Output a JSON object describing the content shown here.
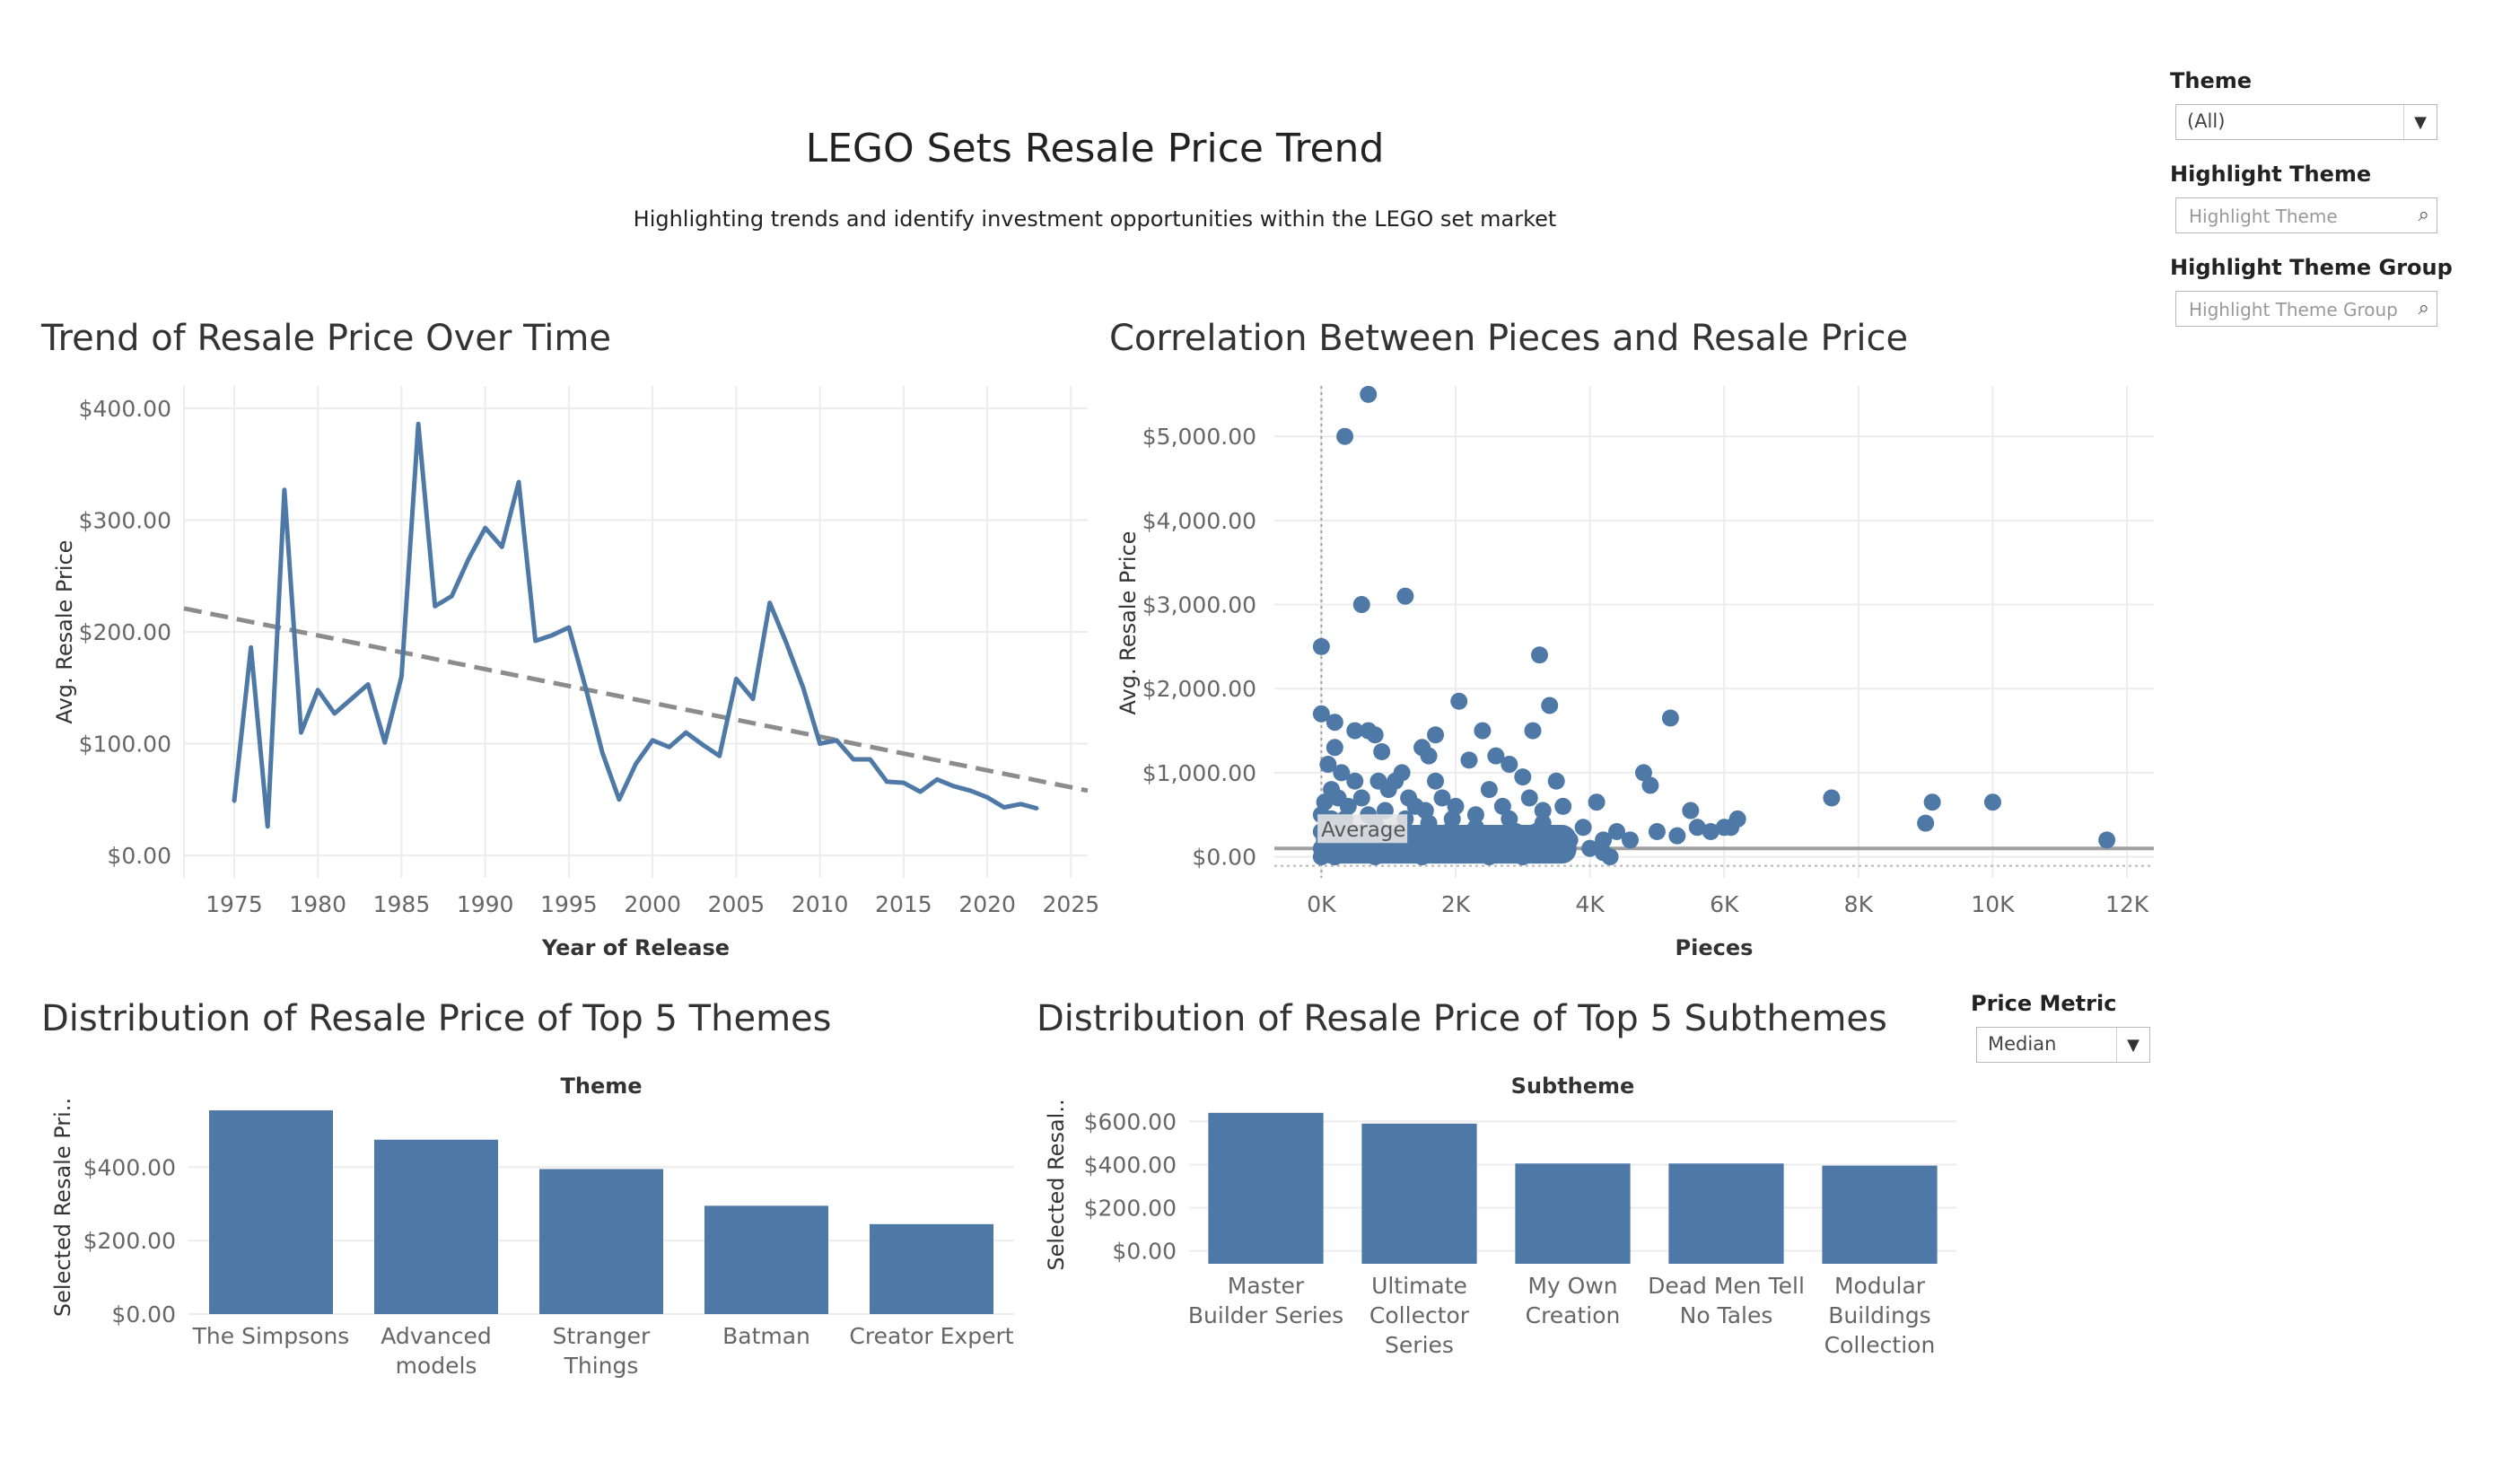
{
  "header": {
    "title": "LEGO Sets Resale Price Trend",
    "subtitle": "Highlighting trends and identify investment opportunities within the LEGO set market"
  },
  "controls": {
    "theme": {
      "label": "Theme",
      "value": "(All)"
    },
    "highlight_theme": {
      "label": "Highlight Theme",
      "placeholder": "Highlight Theme"
    },
    "highlight_theme_group": {
      "label": "Highlight Theme Group",
      "placeholder": "Highlight Theme Group"
    },
    "price_metric": {
      "label": "Price Metric",
      "value": "Median"
    }
  },
  "colors": {
    "series": "#4e79a7",
    "trend": "#8c8c8c",
    "grid": "#ececec",
    "axis_text": "#666666"
  },
  "icons": {
    "dropdown": "caret-down-icon",
    "search": "search-icon"
  },
  "chart_data": [
    {
      "id": "trend",
      "type": "line",
      "title": "Trend of Resale Price Over Time",
      "xlabel": "Year of Release",
      "ylabel": "Avg. Resale Price",
      "xlim": [
        1972,
        2026
      ],
      "ylim": [
        -20,
        420
      ],
      "x_ticks": [
        1975,
        1980,
        1985,
        1990,
        1995,
        2000,
        2005,
        2010,
        2015,
        2020,
        2025
      ],
      "y_ticks": [
        0,
        100,
        200,
        300,
        400
      ],
      "y_tick_labels": [
        "$0.00",
        "$100.00",
        "$200.00",
        "$300.00",
        "$400.00"
      ],
      "grid": true,
      "x": [
        1975,
        1976,
        1977,
        1978,
        1979,
        1980,
        1981,
        1982,
        1983,
        1984,
        1985,
        1986,
        1987,
        1988,
        1989,
        1990,
        1991,
        1992,
        1993,
        1994,
        1995,
        1996,
        1997,
        1998,
        1999,
        2000,
        2001,
        2002,
        2003,
        2004,
        2005,
        2006,
        2007,
        2008,
        2009,
        2010,
        2011,
        2012,
        2013,
        2014,
        2015,
        2016,
        2017,
        2018,
        2019,
        2020,
        2021,
        2022,
        2023
      ],
      "y": [
        48,
        186,
        26,
        327,
        110,
        148,
        127,
        140,
        153,
        101,
        160,
        386,
        223,
        232,
        265,
        293,
        276,
        334,
        192,
        197,
        204,
        150,
        92,
        50,
        82,
        103,
        97,
        110,
        99,
        89,
        158,
        140,
        226,
        190,
        150,
        100,
        103,
        86,
        86,
        66,
        65,
        57,
        68,
        62,
        58,
        52,
        43,
        46,
        42
      ],
      "trend_line": {
        "x": [
          1972,
          2026
        ],
        "y": [
          221,
          58
        ]
      }
    },
    {
      "id": "correlation",
      "type": "scatter",
      "title": "Correlation Between Pieces and Resale Price",
      "xlabel": "Pieces",
      "ylabel": "Avg. Resale Price",
      "xlim": [
        -700,
        12400
      ],
      "ylim": [
        -250,
        5600
      ],
      "x_ticks": [
        0,
        2000,
        4000,
        6000,
        8000,
        10000,
        12000
      ],
      "x_tick_labels": [
        "0K",
        "2K",
        "4K",
        "6K",
        "8K",
        "10K",
        "12K"
      ],
      "y_ticks": [
        0,
        1000,
        2000,
        3000,
        4000,
        5000
      ],
      "y_tick_labels": [
        "$0.00",
        "$1,000.00",
        "$2,000.00",
        "$3,000.00",
        "$4,000.00",
        "$5,000.00"
      ],
      "grid": true,
      "reference_line": {
        "label": "Average",
        "y": 100,
        "x": 0
      },
      "points": [
        [
          700,
          5500
        ],
        [
          350,
          5000
        ],
        [
          600,
          3000
        ],
        [
          1250,
          3100
        ],
        [
          0,
          2500
        ],
        [
          3250,
          2400
        ],
        [
          0,
          1700
        ],
        [
          200,
          1600
        ],
        [
          2050,
          1850
        ],
        [
          3400,
          1800
        ],
        [
          5200,
          1650
        ],
        [
          2400,
          1500
        ],
        [
          3150,
          1500
        ],
        [
          1700,
          1450
        ],
        [
          500,
          1500
        ],
        [
          700,
          1500
        ],
        [
          800,
          1450
        ],
        [
          900,
          1250
        ],
        [
          1500,
          1300
        ],
        [
          1200,
          1000
        ],
        [
          1600,
          1200
        ],
        [
          2200,
          1150
        ],
        [
          2600,
          1200
        ],
        [
          2800,
          1100
        ],
        [
          3000,
          950
        ],
        [
          3500,
          900
        ],
        [
          4800,
          1000
        ],
        [
          4900,
          850
        ],
        [
          4100,
          650
        ],
        [
          4400,
          300
        ],
        [
          5000,
          300
        ],
        [
          5500,
          550
        ],
        [
          5600,
          350
        ],
        [
          6000,
          350
        ],
        [
          6200,
          450
        ],
        [
          7600,
          700
        ],
        [
          9100,
          650
        ],
        [
          9000,
          400
        ],
        [
          10000,
          650
        ],
        [
          11700,
          200
        ],
        [
          3900,
          350
        ],
        [
          4200,
          200
        ],
        [
          4000,
          100
        ],
        [
          3200,
          300
        ],
        [
          3600,
          600
        ],
        [
          2500,
          800
        ],
        [
          2300,
          500
        ],
        [
          1800,
          700
        ],
        [
          1400,
          600
        ],
        [
          1000,
          800
        ],
        [
          200,
          1300
        ],
        [
          100,
          1100
        ],
        [
          300,
          1000
        ],
        [
          500,
          900
        ],
        [
          150,
          800
        ],
        [
          250,
          700
        ],
        [
          400,
          600
        ],
        [
          600,
          700
        ],
        [
          850,
          900
        ],
        [
          1100,
          900
        ],
        [
          1300,
          700
        ],
        [
          1700,
          900
        ],
        [
          2000,
          600
        ],
        [
          2700,
          600
        ],
        [
          3100,
          700
        ],
        [
          3300,
          400
        ],
        [
          3700,
          200
        ],
        [
          2900,
          300
        ],
        [
          2400,
          200
        ],
        [
          1900,
          300
        ],
        [
          1600,
          400
        ],
        [
          1200,
          300
        ],
        [
          800,
          400
        ],
        [
          400,
          300
        ],
        [
          100,
          400
        ],
        [
          50,
          200
        ],
        [
          300,
          150
        ],
        [
          600,
          200
        ],
        [
          900,
          150
        ],
        [
          1300,
          150
        ],
        [
          1800,
          150
        ],
        [
          2200,
          100
        ],
        [
          2600,
          150
        ],
        [
          3000,
          100
        ],
        [
          3400,
          100
        ],
        [
          4200,
          50
        ],
        [
          4300,
          0
        ],
        [
          100,
          50
        ],
        [
          200,
          0
        ],
        [
          500,
          50
        ],
        [
          800,
          0
        ],
        [
          1100,
          50
        ],
        [
          1500,
          0
        ],
        [
          2000,
          50
        ],
        [
          2500,
          0
        ],
        [
          3000,
          0
        ],
        [
          3500,
          50
        ],
        [
          0,
          0
        ],
        [
          0,
          100
        ],
        [
          0,
          300
        ],
        [
          0,
          500
        ],
        [
          50,
          650
        ],
        [
          150,
          450
        ],
        [
          350,
          450
        ],
        [
          700,
          500
        ],
        [
          950,
          550
        ],
        [
          1250,
          450
        ],
        [
          1550,
          550
        ],
        [
          1950,
          450
        ],
        [
          2300,
          350
        ],
        [
          2800,
          450
        ],
        [
          3300,
          550
        ],
        [
          4600,
          200
        ],
        [
          5300,
          250
        ],
        [
          5800,
          300
        ],
        [
          6100,
          350
        ]
      ]
    },
    {
      "id": "themes",
      "type": "bar",
      "title": "Distribution of Resale Price of Top 5 Themes",
      "xlabel": "Theme",
      "ylabel": "Selected Resale Pri..",
      "ylim": [
        0,
        560
      ],
      "y_ticks": [
        0,
        200,
        400
      ],
      "y_tick_labels": [
        "$0.00",
        "$200.00",
        "$400.00"
      ],
      "categories": [
        "The Simpsons",
        "Advanced models",
        "Stranger Things",
        "Batman",
        "Creator Expert"
      ],
      "category_lines": [
        [
          "The Simpsons"
        ],
        [
          "Advanced",
          "models"
        ],
        [
          "Stranger",
          "Things"
        ],
        [
          "Batman"
        ],
        [
          "Creator Expert"
        ]
      ],
      "values": [
        555,
        475,
        395,
        295,
        245
      ]
    },
    {
      "id": "subthemes",
      "type": "bar",
      "title": "Distribution of Resale Price of Top 5 Subthemes",
      "xlabel": "Subtheme",
      "ylabel": "Selected Resal..",
      "ylim": [
        -60,
        660
      ],
      "y_ticks": [
        0,
        200,
        400,
        600
      ],
      "y_tick_labels": [
        "$0.00",
        "$200.00",
        "$400.00",
        "$600.00"
      ],
      "categories": [
        "Master Builder Series",
        "Ultimate Collector Series",
        "My Own Creation",
        "Dead Men Tell No Tales",
        "Modular Buildings Collection"
      ],
      "category_lines": [
        [
          "Master",
          "Builder Series"
        ],
        [
          "Ultimate",
          "Collector",
          "Series"
        ],
        [
          "My Own",
          "Creation"
        ],
        [
          "Dead Men Tell",
          "No Tales"
        ],
        [
          "Modular",
          "Buildings",
          "Collection"
        ]
      ],
      "values": [
        640,
        590,
        405,
        405,
        395
      ]
    }
  ]
}
